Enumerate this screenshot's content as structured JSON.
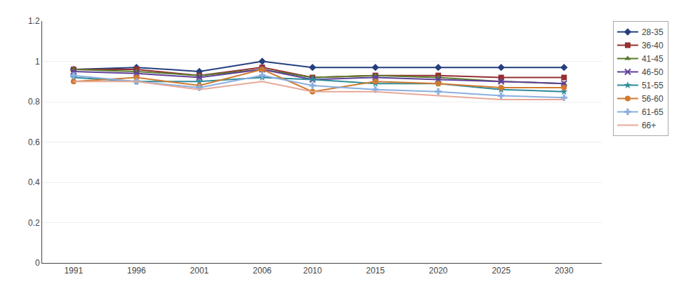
{
  "chart_data": {
    "type": "line",
    "x": [
      1991,
      1996,
      2001,
      2006,
      2010,
      2015,
      2020,
      2025,
      2030
    ],
    "series": [
      {
        "name": "28-35",
        "color": "#243F7F",
        "marker": "diamond",
        "values": [
          0.96,
          0.97,
          0.95,
          1.0,
          0.97,
          0.97,
          0.97,
          0.97,
          0.97
        ]
      },
      {
        "name": "36-40",
        "color": "#943031",
        "marker": "square",
        "values": [
          0.96,
          0.96,
          0.93,
          0.97,
          0.92,
          0.93,
          0.93,
          0.92,
          0.92
        ]
      },
      {
        "name": "41-45",
        "color": "#5A7A2B",
        "marker": "triangle",
        "values": [
          0.96,
          0.95,
          0.93,
          0.96,
          0.92,
          0.93,
          0.92,
          0.9,
          0.89
        ]
      },
      {
        "name": "46-50",
        "color": "#60409A",
        "marker": "x",
        "values": [
          0.95,
          0.94,
          0.92,
          0.96,
          0.91,
          0.92,
          0.91,
          0.9,
          0.89
        ]
      },
      {
        "name": "51-55",
        "color": "#2E8B9A",
        "marker": "star",
        "values": [
          0.92,
          0.9,
          0.9,
          0.92,
          0.91,
          0.89,
          0.89,
          0.86,
          0.85
        ]
      },
      {
        "name": "56-60",
        "color": "#D07B30",
        "marker": "circle",
        "values": [
          0.9,
          0.92,
          0.88,
          0.96,
          0.85,
          0.9,
          0.89,
          0.87,
          0.87
        ]
      },
      {
        "name": "61-65",
        "color": "#8AAFE0",
        "marker": "plus",
        "values": [
          0.93,
          0.9,
          0.87,
          0.93,
          0.88,
          0.86,
          0.85,
          0.83,
          0.82
        ]
      },
      {
        "name": "66+",
        "color": "#E8A898",
        "marker": "none",
        "values": [
          0.9,
          0.9,
          0.86,
          0.9,
          0.85,
          0.85,
          0.83,
          0.81,
          0.81
        ]
      }
    ],
    "xlim": [
      1988.5,
      2033
    ],
    "xticks": [
      1991,
      1996,
      2001,
      2006,
      2010,
      2015,
      2020,
      2025,
      2030
    ],
    "ylim": [
      0,
      1.2
    ],
    "yticks": [
      0,
      0.2,
      0.4,
      0.6,
      0.8,
      1,
      1.2
    ],
    "grid": true,
    "legend": "upper right"
  }
}
